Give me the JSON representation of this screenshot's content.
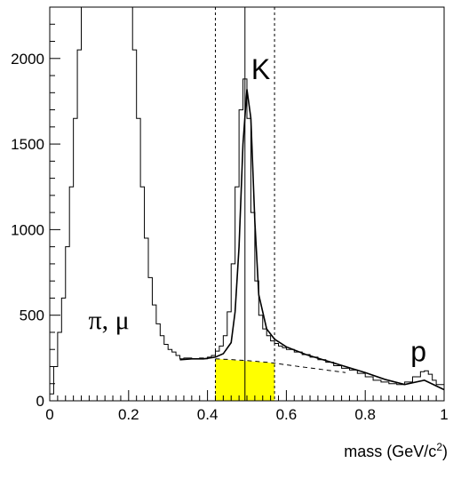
{
  "chart_data": {
    "type": "line",
    "title": "",
    "xlabel": "mass (GeV/c",
    "xlabel_sup": "2",
    "xlabel_close": ")",
    "ylabel": "",
    "xlim": [
      0,
      1
    ],
    "ylim": [
      0,
      2300
    ],
    "x_ticks": [
      0,
      0.2,
      0.4,
      0.6,
      0.8,
      1
    ],
    "x_tick_labels": [
      "0",
      "0.2",
      "0.4",
      "0.6",
      "0.8",
      "1"
    ],
    "y_ticks": [
      0,
      500,
      1000,
      1500,
      2000
    ],
    "y_tick_labels": [
      "0",
      "500",
      "1000",
      "1500",
      "2000"
    ],
    "grid": false,
    "annotations": [
      {
        "text": "π, μ",
        "x": 0.15,
        "y": 420
      },
      {
        "text": "K",
        "x": 0.535,
        "y": 1880
      },
      {
        "text": "p",
        "x": 0.935,
        "y": 230
      }
    ],
    "series": [
      {
        "style": "histogram",
        "x": [
          0.0,
          0.01,
          0.02,
          0.03,
          0.04,
          0.05,
          0.06,
          0.07,
          0.08,
          0.09,
          0.1,
          0.11,
          0.12,
          0.13,
          0.14,
          0.15,
          0.16,
          0.17,
          0.18,
          0.19,
          0.2,
          0.21,
          0.22,
          0.23,
          0.24,
          0.25,
          0.26,
          0.27,
          0.28,
          0.29,
          0.3,
          0.31,
          0.32,
          0.33,
          0.34,
          0.35,
          0.36,
          0.37,
          0.38,
          0.39,
          0.4,
          0.41,
          0.42,
          0.43,
          0.44,
          0.45,
          0.46,
          0.47,
          0.48,
          0.49,
          0.5,
          0.51,
          0.52,
          0.53,
          0.54,
          0.55,
          0.56,
          0.57,
          0.58,
          0.59,
          0.6,
          0.62,
          0.64,
          0.66,
          0.68,
          0.7,
          0.72,
          0.74,
          0.76,
          0.78,
          0.8,
          0.82,
          0.84,
          0.86,
          0.88,
          0.9,
          0.92,
          0.94,
          0.95,
          0.96,
          0.97,
          0.98,
          1.0
        ],
        "y": [
          40,
          200,
          400,
          600,
          900,
          1250,
          1650,
          2050,
          2300,
          2300,
          2300,
          2300,
          2300,
          2300,
          2300,
          2300,
          2300,
          2300,
          2300,
          2300,
          2300,
          2050,
          1650,
          1250,
          950,
          720,
          560,
          450,
          380,
          330,
          300,
          285,
          265,
          245,
          250,
          250,
          245,
          245,
          250,
          245,
          255,
          265,
          290,
          320,
          380,
          520,
          800,
          1250,
          1700,
          1880,
          1650,
          1100,
          700,
          500,
          420,
          380,
          350,
          335,
          320,
          310,
          300,
          285,
          270,
          255,
          240,
          225,
          205,
          190,
          180,
          160,
          140,
          120,
          110,
          100,
          95,
          110,
          140,
          170,
          175,
          155,
          120,
          95,
          60
        ]
      },
      {
        "style": "fit",
        "x": [
          0.33,
          0.36,
          0.39,
          0.42,
          0.44,
          0.46,
          0.47,
          0.48,
          0.49,
          0.5,
          0.51,
          0.52,
          0.53,
          0.55,
          0.57,
          0.6,
          0.65,
          0.7,
          0.75,
          0.8,
          0.85,
          0.9,
          0.95,
          1.0
        ],
        "y": [
          240,
          245,
          245,
          255,
          275,
          340,
          520,
          900,
          1500,
          1820,
          1650,
          1050,
          620,
          420,
          360,
          315,
          270,
          235,
          200,
          165,
          125,
          95,
          120,
          65
        ]
      },
      {
        "style": "background",
        "x": [
          0.42,
          0.45,
          0.5,
          0.55,
          0.57,
          0.6,
          0.65,
          0.7,
          0.75
        ],
        "y": [
          245,
          242,
          235,
          225,
          220,
          210,
          195,
          180,
          165
        ]
      }
    ],
    "markers": {
      "dashed_lines_x": [
        0.42,
        0.57
      ],
      "solid_line_x": 0.495,
      "shaded_region": {
        "x": [
          0.42,
          0.57
        ],
        "y_top": [
          245,
          220
        ],
        "color": "#ffff00"
      }
    }
  }
}
